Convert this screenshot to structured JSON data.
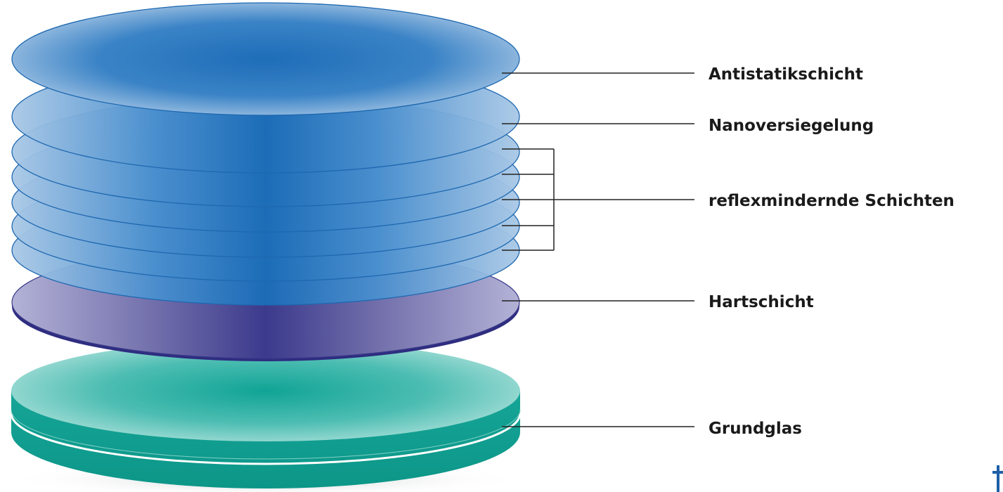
{
  "diagram": {
    "layers": [
      {
        "id": "antistatic",
        "label": "Antistatikschicht",
        "color": "#2271b9"
      },
      {
        "id": "nano",
        "label": "Nanoversiegelung",
        "color": "#2271b9"
      },
      {
        "id": "antireflective",
        "label": "reflexmindernde Schichten",
        "color": "#2271b9"
      },
      {
        "id": "hard",
        "label": "Hartschicht",
        "color": "#3c3c8c"
      },
      {
        "id": "base",
        "label": "Grundglas",
        "color": "#19a99b"
      }
    ],
    "colors": {
      "blue_coating": "#1f6eb8",
      "blue_edge": "#a9c6e3",
      "hard_coat": "#3b3a8c",
      "hard_coat_edge": "#b0b0d0",
      "base_glass": "#14a597",
      "base_glass_edge": "#a6ded7",
      "leader_line": "#222222"
    }
  }
}
